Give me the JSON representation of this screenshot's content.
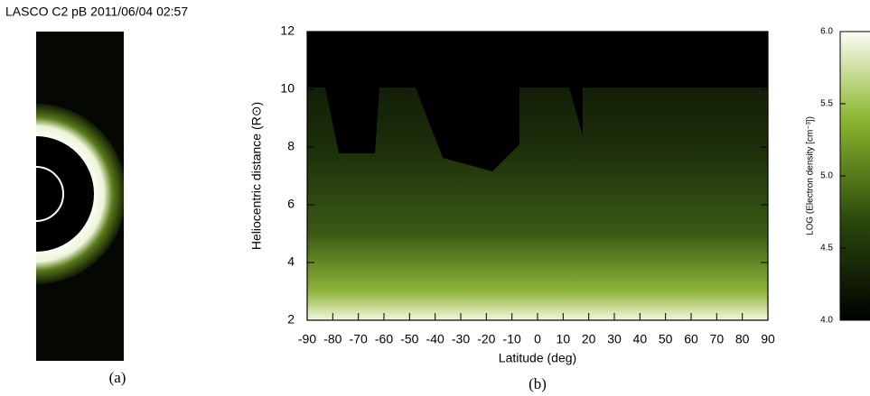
{
  "panel_a": {
    "title": "LASCO C2 pB 2011/06/04 02:57",
    "caption": "(a)"
  },
  "chart_data": {
    "type": "heatmap",
    "x_label": "Latitude (deg)",
    "y_label": "Heliocentric distance (R⊙)",
    "xlim": [
      -90,
      90
    ],
    "xticks": [
      -90,
      -80,
      -70,
      -60,
      -50,
      -40,
      -30,
      -20,
      -10,
      0,
      10,
      20,
      30,
      40,
      50,
      60,
      70,
      80,
      90
    ],
    "ylim": [
      2,
      12
    ],
    "yticks": [
      2,
      4,
      6,
      8,
      10,
      12
    ],
    "colorbar_label": "LOG (Electron density [cm⁻³])",
    "clim": [
      4,
      6
    ],
    "cticks": [
      {
        "value": 4,
        "label": "4.0"
      },
      4.5,
      {
        "value": 5,
        "label": "5.0"
      },
      5.5,
      {
        "value": 6,
        "label": "6.0"
      }
    ],
    "caption": "(b)"
  }
}
